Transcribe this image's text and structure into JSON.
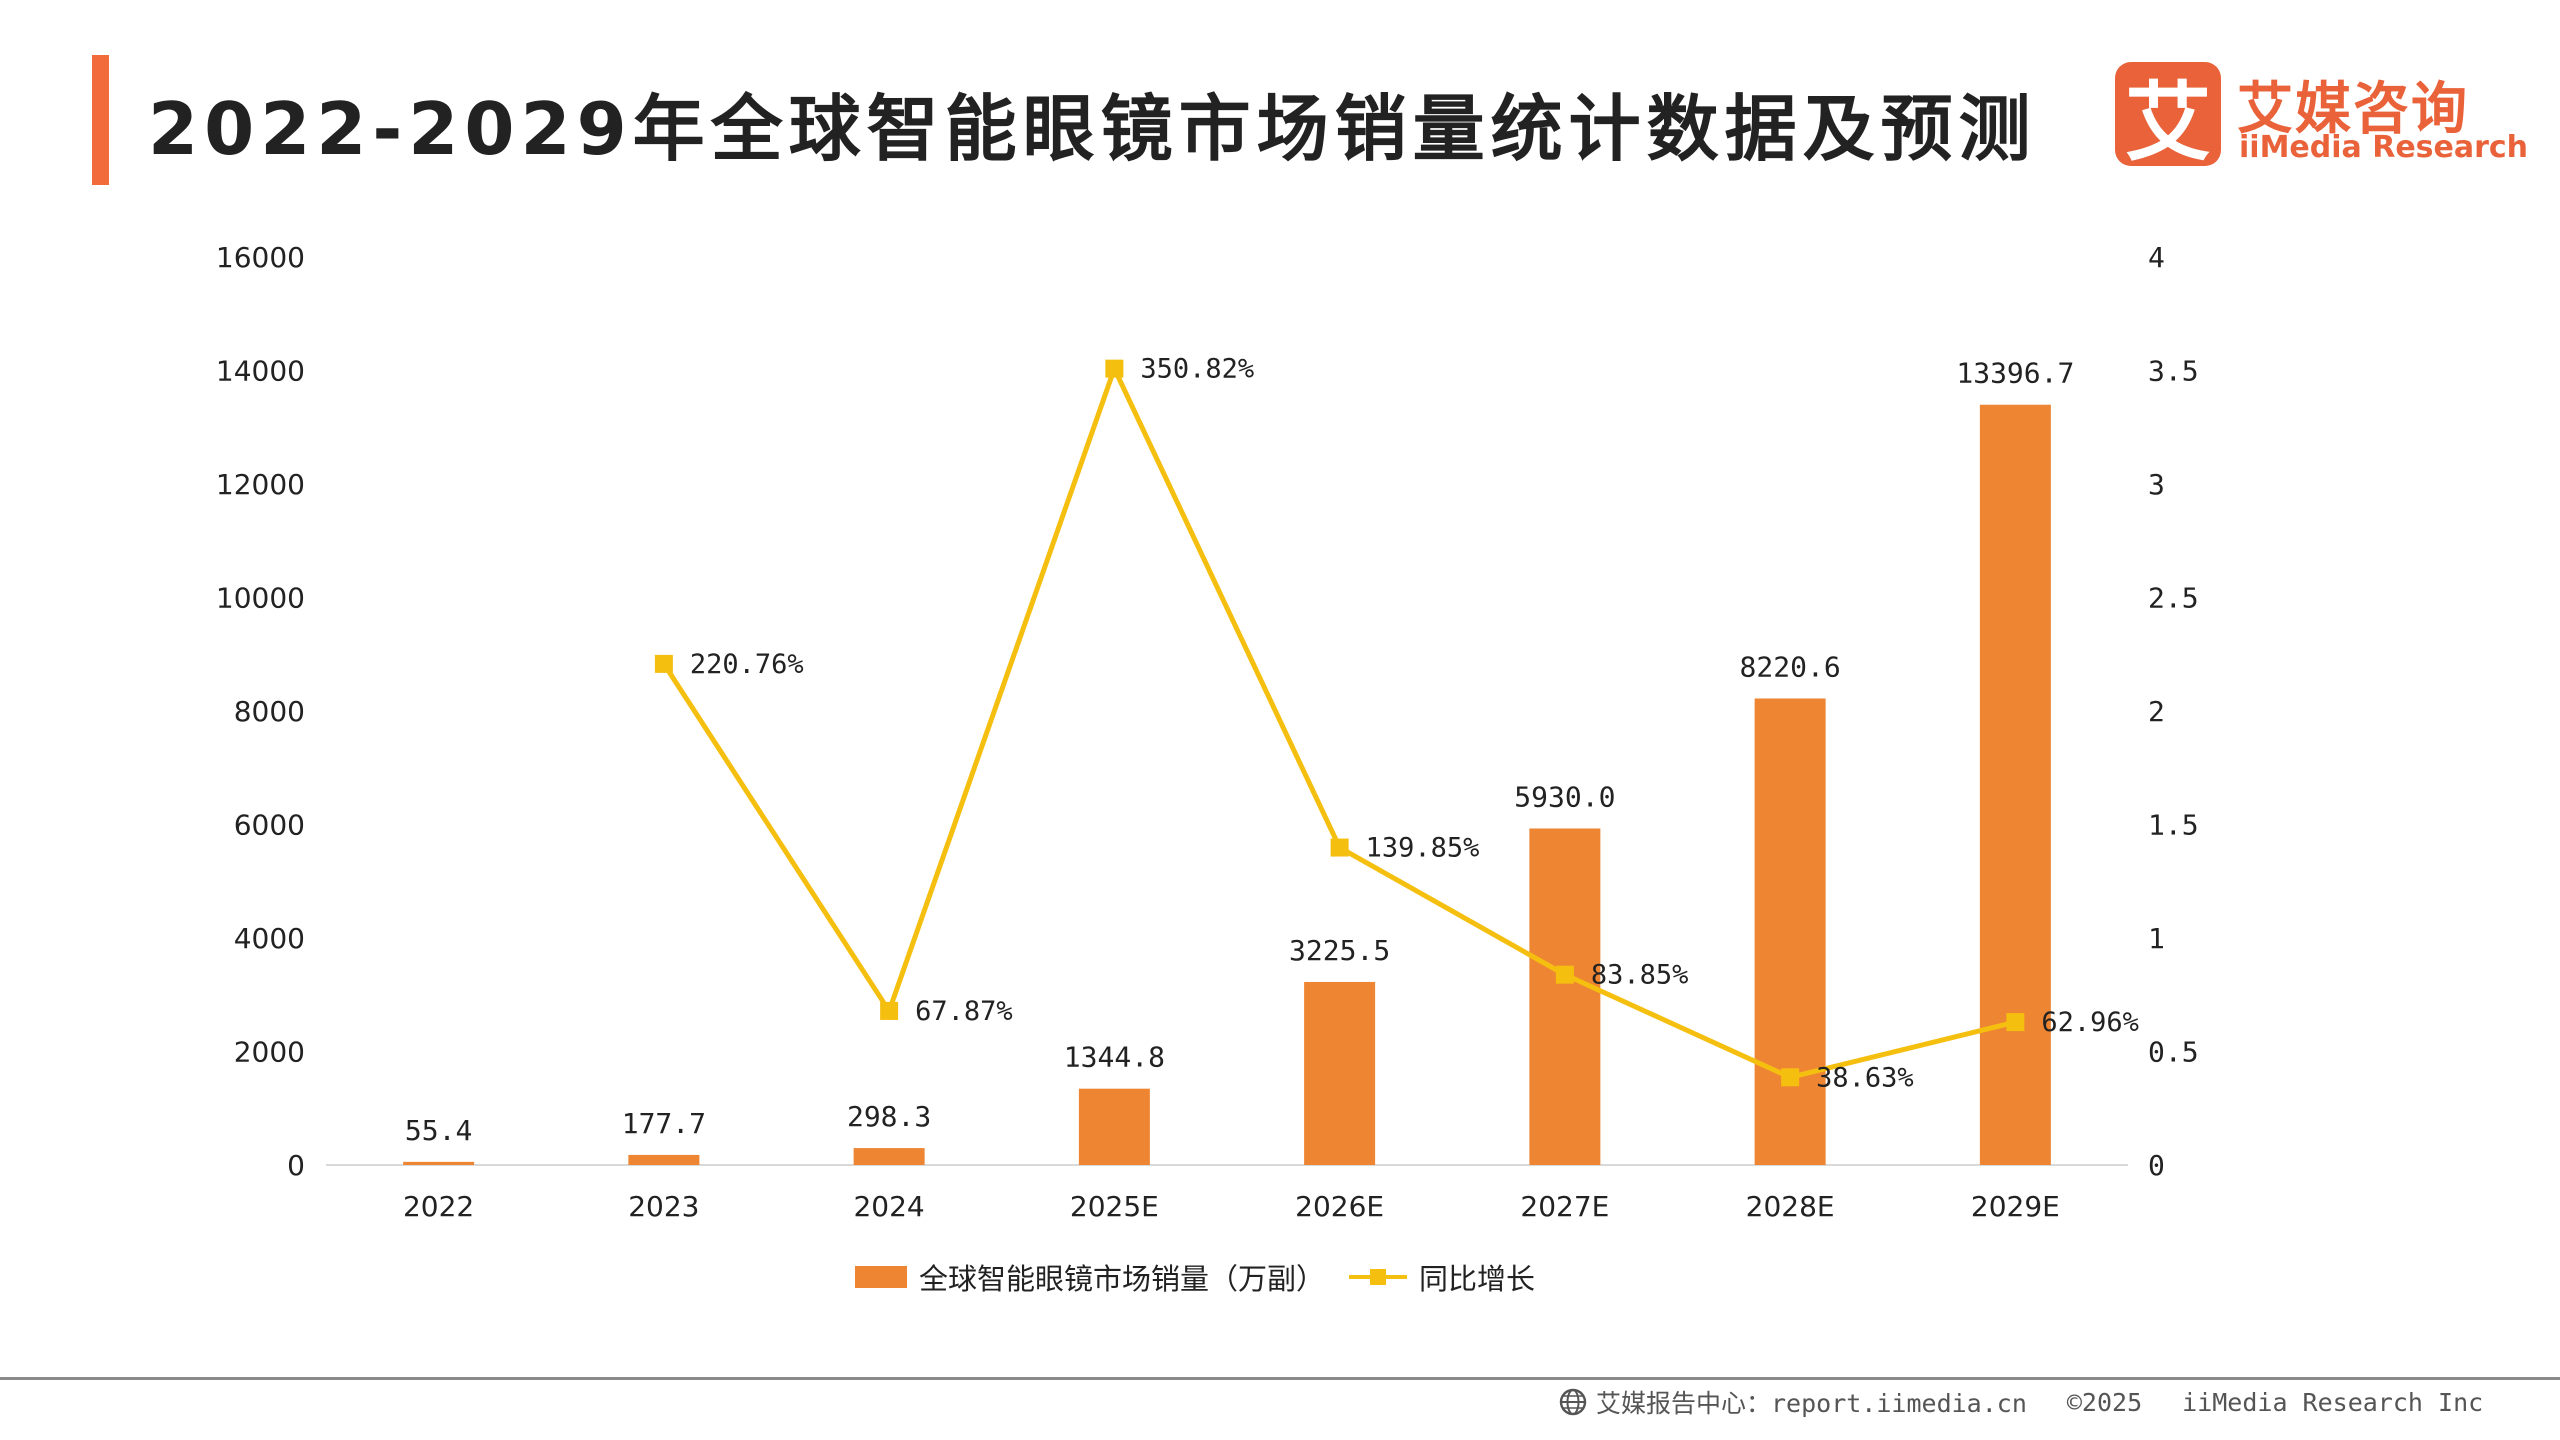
{
  "header": {
    "title": "2022-2029年全球智能眼镜市场销量统计数据及预测"
  },
  "logo": {
    "mark": "艾",
    "name_cn": "艾媒咨询",
    "name_en": "iiMedia Research"
  },
  "chart_data": {
    "type": "bar",
    "categories": [
      "2022",
      "2023",
      "2024",
      "2025E",
      "2026E",
      "2027E",
      "2028E",
      "2029E"
    ],
    "series": [
      {
        "name": "全球智能眼镜市场销量（万副）",
        "type": "bar",
        "axis": "left",
        "values": [
          55.4,
          177.7,
          298.3,
          1344.8,
          3225.5,
          5930.0,
          8220.6,
          13396.7
        ],
        "labels": [
          "55.4",
          "177.7",
          "298.3",
          "1344.8",
          "3225.5",
          "5930.0",
          "8220.6",
          "13396.7"
        ]
      },
      {
        "name": "同比增长",
        "type": "line",
        "axis": "right",
        "values": [
          null,
          2.2076,
          0.6787,
          3.5082,
          1.3985,
          0.8385,
          0.3863,
          0.6296
        ],
        "labels": [
          "",
          "220.76%",
          "67.87%",
          "350.82%",
          "139.85%",
          "83.85%",
          "38.63%",
          "62.96%"
        ]
      }
    ],
    "y_left": {
      "range": [
        0,
        16000
      ],
      "ticks": [
        "0",
        "2000",
        "4000",
        "6000",
        "8000",
        "10000",
        "12000",
        "14000",
        "16000"
      ]
    },
    "y_right": {
      "range": [
        0,
        4
      ],
      "ticks": [
        "0",
        "0.5",
        "1",
        "1.5",
        "2",
        "2.5",
        "3",
        "3.5",
        "4"
      ]
    },
    "grid": false,
    "legend_position": "bottom-center",
    "colors": {
      "bar": "#ee8532",
      "line": "#f5bf10",
      "axis": "#d9d9d9",
      "text": "#222222"
    }
  },
  "legend": {
    "bar_label": "全球智能眼镜市场销量（万副）",
    "line_label": "同比增长"
  },
  "footer": {
    "source": "艾媒报告中心：report.iimedia.cn",
    "copyright": "©2025",
    "company": "iiMedia Research Inc"
  }
}
